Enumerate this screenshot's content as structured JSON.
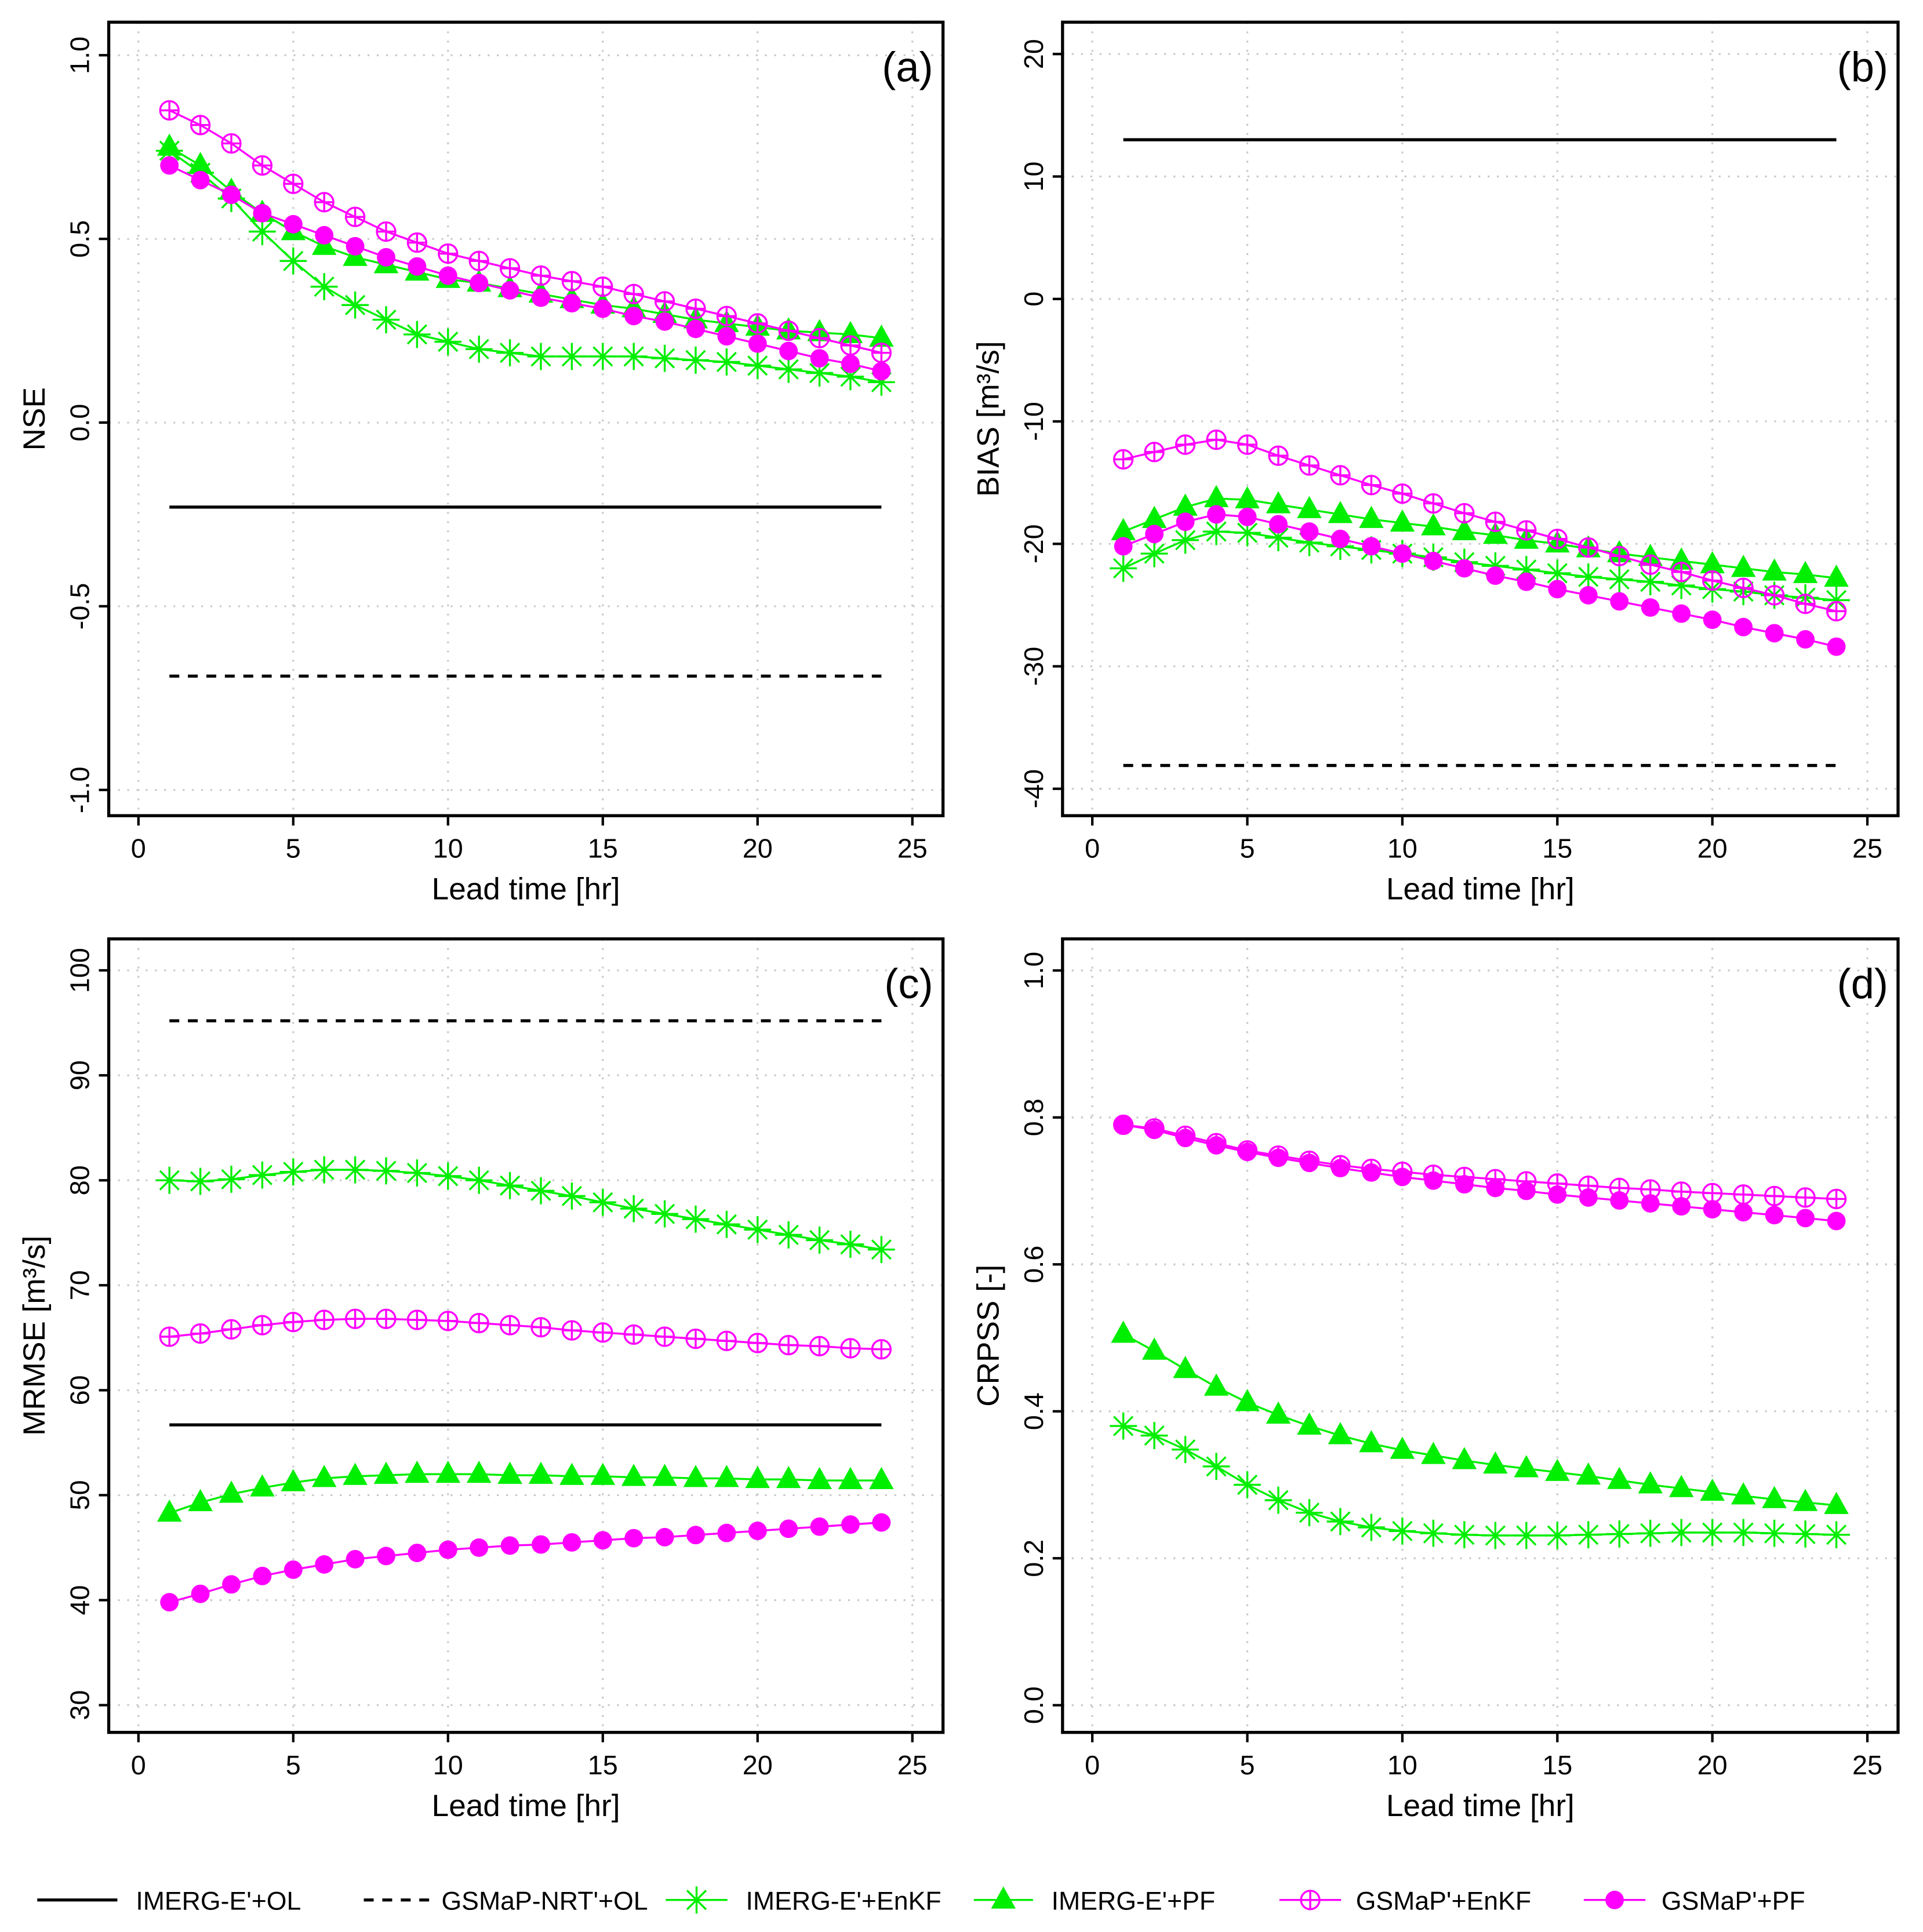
{
  "colors": {
    "green": "#00ee00",
    "magenta": "#ff00ff",
    "black": "#000000",
    "grid": "#c8c8c8"
  },
  "legend": {
    "position": "bottom",
    "items": [
      {
        "label": "IMERG-E'+OL",
        "style": "solid"
      },
      {
        "label": "GSMaP-NRT'+OL",
        "style": "dashed"
      },
      {
        "label": "IMERG-E'+EnKF",
        "marker": "asterisk"
      },
      {
        "label": "IMERG-E'+PF",
        "marker": "filled-triangle"
      },
      {
        "label": "GSMaP'+EnKF",
        "marker": "circle-plus"
      },
      {
        "label": "GSMaP'+PF",
        "marker": "filled-circle"
      }
    ]
  },
  "chart_data": [
    {
      "type": "line",
      "panel_label": "(a)",
      "xlabel": "Lead time [hr]",
      "ylabel": "NSE",
      "xlim": [
        -0.96,
        25.99
      ],
      "ylim": [
        -1.07,
        1.09
      ],
      "grid": true,
      "xticks": [
        "0",
        "5",
        "10",
        "15",
        "20",
        "25"
      ],
      "yticks": [
        "-1.0",
        "-0.5",
        "0.0",
        "0.5",
        "1.0"
      ],
      "x": [
        1,
        2,
        3,
        4,
        5,
        6,
        7,
        8,
        9,
        10,
        11,
        12,
        13,
        14,
        15,
        16,
        17,
        18,
        19,
        20,
        21,
        22,
        23,
        24
      ],
      "series": [
        {
          "name": "IMERG-E'+OL",
          "constant": -0.23
        },
        {
          "name": "GSMaP-NRT'+OL",
          "constant": -0.69
        },
        {
          "name": "IMERG-E'+EnKF",
          "values": [
            0.74,
            0.68,
            0.61,
            0.52,
            0.44,
            0.37,
            0.32,
            0.28,
            0.24,
            0.22,
            0.2,
            0.19,
            0.18,
            0.18,
            0.18,
            0.18,
            0.175,
            0.17,
            0.165,
            0.155,
            0.145,
            0.135,
            0.125,
            0.11
          ]
        },
        {
          "name": "IMERG-E'+PF",
          "values": [
            0.75,
            0.7,
            0.63,
            0.57,
            0.52,
            0.48,
            0.45,
            0.43,
            0.41,
            0.39,
            0.38,
            0.365,
            0.35,
            0.335,
            0.32,
            0.31,
            0.295,
            0.28,
            0.27,
            0.26,
            0.25,
            0.245,
            0.24,
            0.23
          ]
        },
        {
          "name": "GSMaP'+EnKF",
          "values": [
            0.85,
            0.81,
            0.76,
            0.7,
            0.65,
            0.6,
            0.56,
            0.52,
            0.49,
            0.46,
            0.44,
            0.42,
            0.4,
            0.385,
            0.37,
            0.35,
            0.33,
            0.31,
            0.29,
            0.27,
            0.25,
            0.23,
            0.21,
            0.19
          ]
        },
        {
          "name": "GSMaP'+PF",
          "values": [
            0.7,
            0.66,
            0.62,
            0.57,
            0.54,
            0.51,
            0.48,
            0.45,
            0.425,
            0.4,
            0.38,
            0.36,
            0.34,
            0.325,
            0.31,
            0.29,
            0.275,
            0.255,
            0.235,
            0.215,
            0.195,
            0.175,
            0.16,
            0.14
          ]
        }
      ]
    },
    {
      "type": "line",
      "panel_label": "(b)",
      "xlabel": "Lead time [hr]",
      "ylabel": "BIAS [m³/s]",
      "xlim": [
        -0.96,
        25.99
      ],
      "ylim": [
        -42.2,
        22.6
      ],
      "grid": true,
      "xticks": [
        "0",
        "5",
        "10",
        "15",
        "20",
        "25"
      ],
      "yticks": [
        "-40",
        "-30",
        "-20",
        "-10",
        "0",
        "10",
        "20"
      ],
      "x": [
        1,
        2,
        3,
        4,
        5,
        6,
        7,
        8,
        9,
        10,
        11,
        12,
        13,
        14,
        15,
        16,
        17,
        18,
        19,
        20,
        21,
        22,
        23,
        24
      ],
      "series": [
        {
          "name": "IMERG-E'+OL",
          "constant": 13.0
        },
        {
          "name": "GSMaP-NRT'+OL",
          "constant": -38.1
        },
        {
          "name": "IMERG-E'+EnKF",
          "values": [
            -22.0,
            -20.8,
            -19.7,
            -19.0,
            -19.1,
            -19.5,
            -19.9,
            -20.2,
            -20.5,
            -20.8,
            -21.1,
            -21.5,
            -21.8,
            -22.1,
            -22.4,
            -22.7,
            -22.9,
            -23.1,
            -23.4,
            -23.7,
            -23.9,
            -24.2,
            -24.4,
            -24.6
          ]
        },
        {
          "name": "IMERG-E'+PF",
          "values": [
            -19.0,
            -18.0,
            -17.0,
            -16.3,
            -16.4,
            -16.8,
            -17.2,
            -17.6,
            -18.0,
            -18.3,
            -18.6,
            -19.0,
            -19.3,
            -19.7,
            -20.0,
            -20.4,
            -20.8,
            -21.1,
            -21.4,
            -21.7,
            -22.0,
            -22.3,
            -22.5,
            -22.8
          ]
        },
        {
          "name": "GSMaP'+EnKF",
          "values": [
            -13.1,
            -12.5,
            -11.9,
            -11.5,
            -11.9,
            -12.8,
            -13.6,
            -14.4,
            -15.2,
            -15.9,
            -16.7,
            -17.5,
            -18.2,
            -18.9,
            -19.6,
            -20.3,
            -21.0,
            -21.7,
            -22.3,
            -23.0,
            -23.6,
            -24.2,
            -24.9,
            -25.5
          ]
        },
        {
          "name": "GSMaP'+PF",
          "values": [
            -20.2,
            -19.2,
            -18.2,
            -17.6,
            -17.8,
            -18.4,
            -19.0,
            -19.6,
            -20.2,
            -20.8,
            -21.4,
            -22.0,
            -22.6,
            -23.1,
            -23.7,
            -24.2,
            -24.7,
            -25.2,
            -25.7,
            -26.2,
            -26.8,
            -27.3,
            -27.8,
            -28.4
          ]
        }
      ]
    },
    {
      "type": "line",
      "panel_label": "(c)",
      "xlabel": "Lead time [hr]",
      "ylabel": "MRMSE [m³/s]",
      "xlim": [
        -0.96,
        25.99
      ],
      "ylim": [
        27.4,
        103.0
      ],
      "grid": true,
      "xticks": [
        "0",
        "5",
        "10",
        "15",
        "20",
        "25"
      ],
      "yticks": [
        "30",
        "40",
        "50",
        "60",
        "70",
        "80",
        "90",
        "100"
      ],
      "x": [
        1,
        2,
        3,
        4,
        5,
        6,
        7,
        8,
        9,
        10,
        11,
        12,
        13,
        14,
        15,
        16,
        17,
        18,
        19,
        20,
        21,
        22,
        23,
        24
      ],
      "series": [
        {
          "name": "IMERG-E'+OL",
          "constant": 56.7
        },
        {
          "name": "GSMaP-NRT'+OL",
          "constant": 95.2
        },
        {
          "name": "IMERG-E'+EnKF",
          "values": [
            80.0,
            79.9,
            80.1,
            80.5,
            80.8,
            81.0,
            81.0,
            80.9,
            80.7,
            80.4,
            80.0,
            79.5,
            79.0,
            78.5,
            77.9,
            77.3,
            76.8,
            76.3,
            75.8,
            75.3,
            74.8,
            74.3,
            73.9,
            73.4
          ]
        },
        {
          "name": "IMERG-E'+PF",
          "values": [
            48.3,
            49.3,
            50.1,
            50.7,
            51.2,
            51.6,
            51.8,
            51.9,
            52.0,
            52.0,
            52.0,
            51.9,
            51.9,
            51.8,
            51.8,
            51.7,
            51.7,
            51.6,
            51.6,
            51.5,
            51.5,
            51.4,
            51.4,
            51.4
          ]
        },
        {
          "name": "GSMaP'+EnKF",
          "values": [
            65.1,
            65.4,
            65.8,
            66.2,
            66.5,
            66.7,
            66.8,
            66.8,
            66.7,
            66.6,
            66.4,
            66.2,
            66.0,
            65.7,
            65.5,
            65.3,
            65.1,
            64.9,
            64.7,
            64.5,
            64.3,
            64.2,
            64.0,
            63.9
          ]
        },
        {
          "name": "GSMaP'+PF",
          "values": [
            39.8,
            40.6,
            41.5,
            42.3,
            42.9,
            43.4,
            43.9,
            44.2,
            44.5,
            44.8,
            45.0,
            45.2,
            45.3,
            45.5,
            45.7,
            45.9,
            46.0,
            46.2,
            46.4,
            46.6,
            46.8,
            47.0,
            47.2,
            47.4
          ]
        }
      ]
    },
    {
      "type": "line",
      "panel_label": "(d)",
      "xlabel": "Lead time [hr]",
      "ylabel": "CRPSS [-]",
      "xlim": [
        -0.96,
        25.99
      ],
      "ylim": [
        -0.037,
        1.043
      ],
      "grid": true,
      "xticks": [
        "0",
        "5",
        "10",
        "15",
        "20",
        "25"
      ],
      "yticks": [
        "0.0",
        "0.2",
        "0.4",
        "0.6",
        "0.8",
        "1.0"
      ],
      "x": [
        1,
        2,
        3,
        4,
        5,
        6,
        7,
        8,
        9,
        10,
        11,
        12,
        13,
        14,
        15,
        16,
        17,
        18,
        19,
        20,
        21,
        22,
        23,
        24
      ],
      "series": [
        {
          "name": "IMERG-E'+EnKF",
          "values": [
            0.38,
            0.367,
            0.348,
            0.325,
            0.3,
            0.279,
            0.262,
            0.25,
            0.242,
            0.237,
            0.234,
            0.232,
            0.231,
            0.231,
            0.231,
            0.232,
            0.233,
            0.234,
            0.235,
            0.235,
            0.235,
            0.234,
            0.233,
            0.232
          ]
        },
        {
          "name": "IMERG-E'+PF",
          "values": [
            0.505,
            0.482,
            0.457,
            0.433,
            0.412,
            0.395,
            0.38,
            0.367,
            0.356,
            0.347,
            0.34,
            0.333,
            0.327,
            0.322,
            0.317,
            0.312,
            0.306,
            0.3,
            0.295,
            0.29,
            0.285,
            0.28,
            0.276,
            0.272
          ]
        },
        {
          "name": "GSMaP'+EnKF",
          "values": [
            0.79,
            0.785,
            0.775,
            0.765,
            0.755,
            0.748,
            0.741,
            0.735,
            0.73,
            0.726,
            0.722,
            0.719,
            0.716,
            0.713,
            0.71,
            0.707,
            0.704,
            0.702,
            0.699,
            0.697,
            0.695,
            0.693,
            0.691,
            0.689
          ]
        },
        {
          "name": "GSMaP'+PF",
          "values": [
            0.79,
            0.783,
            0.772,
            0.762,
            0.753,
            0.745,
            0.738,
            0.731,
            0.725,
            0.719,
            0.714,
            0.709,
            0.704,
            0.7,
            0.695,
            0.691,
            0.687,
            0.683,
            0.679,
            0.675,
            0.671,
            0.667,
            0.663,
            0.659
          ]
        }
      ]
    }
  ]
}
